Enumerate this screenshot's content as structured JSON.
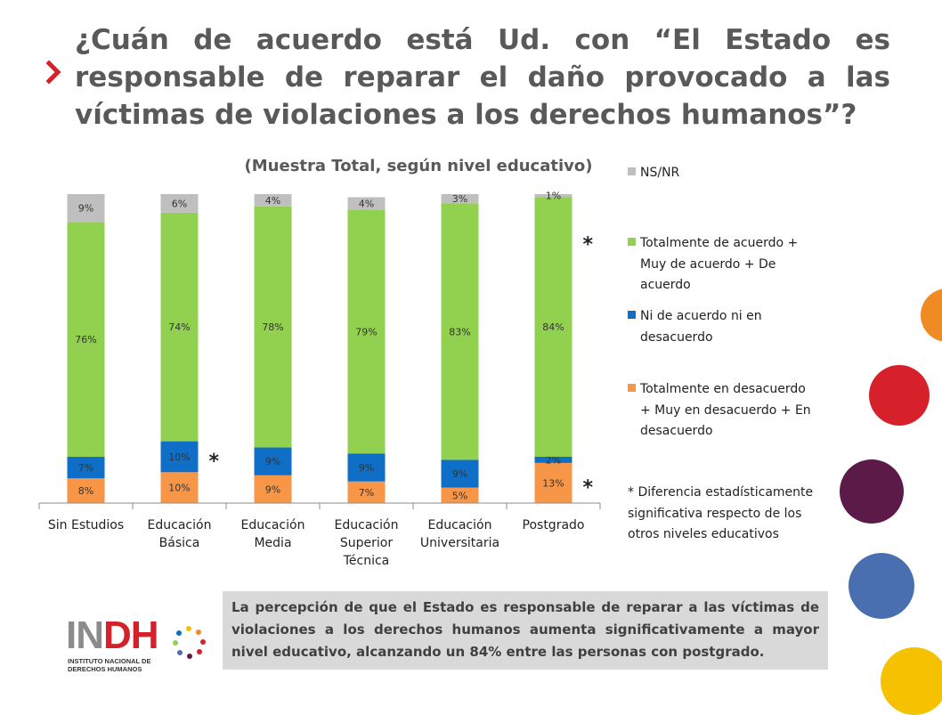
{
  "title": "¿Cuán de acuerdo está Ud. con “El Estado es responsable de reparar el daño provocado a las víctimas de violaciones a los derechos humanos”?",
  "subtitle": "(Muestra Total, según nivel educativo)",
  "chart_data": {
    "type": "bar",
    "stacked": true,
    "categories": [
      "Sin Estudios",
      "Educación Básica",
      "Educación Media",
      "Educación Superior Técnica",
      "Educación Universitaria",
      "Postgrado"
    ],
    "category_lines": [
      [
        "Sin Estudios"
      ],
      [
        "Educación",
        "Básica"
      ],
      [
        "Educación",
        "Media"
      ],
      [
        "Educación",
        "Superior",
        "Técnica"
      ],
      [
        "Educación",
        "Universitaria"
      ],
      [
        "Postgrado"
      ]
    ],
    "series": [
      {
        "name": "Totalmente en desacuerdo + Muy en desacuerdo + En desacuerdo",
        "color": "#f79646",
        "values": [
          8,
          10,
          9,
          7,
          5,
          13
        ],
        "labels": [
          "8%",
          "10%",
          "9%",
          "7%",
          "5%",
          "13%"
        ]
      },
      {
        "name": "Ni de acuerdo ni en desacuerdo",
        "color": "#0f6fc6",
        "values": [
          7,
          10,
          9,
          9,
          9,
          2
        ],
        "labels": [
          "7%",
          "10%",
          "9%",
          "9%",
          "9%",
          "2%"
        ]
      },
      {
        "name": "Totalmente de acuerdo + Muy de acuerdo + De acuerdo",
        "color": "#92d050",
        "values": [
          76,
          74,
          78,
          79,
          83,
          84
        ],
        "labels": [
          "76%",
          "74%",
          "78%",
          "79%",
          "83%",
          "84%"
        ]
      },
      {
        "name": "NS/NR",
        "color": "#bfbfbf",
        "values": [
          9,
          6,
          4,
          4,
          3,
          1
        ],
        "labels": [
          "9%",
          "6%",
          "4%",
          "4%",
          "3%",
          "1%"
        ]
      }
    ],
    "ylim": [
      0,
      100
    ],
    "grid": false,
    "legend_position": "right",
    "significance_markers": [
      {
        "category": "Educación Básica",
        "series": "Ni de acuerdo ni en desacuerdo",
        "symbol": "*"
      },
      {
        "category": "Postgrado",
        "series": "Totalmente de acuerdo + Muy de acuerdo + De acuerdo",
        "symbol": "*"
      },
      {
        "category": "Postgrado",
        "series": "Totalmente en desacuerdo + Muy en desacuerdo + En desacuerdo",
        "symbol": "*"
      }
    ]
  },
  "legend": [
    {
      "label": "NS/NR",
      "color": "#bfbfbf"
    },
    {
      "label": "Totalmente de acuerdo + Muy de acuerdo + De acuerdo",
      "color": "#92d050"
    },
    {
      "label": "Ni de acuerdo ni en desacuerdo",
      "color": "#0f6fc6"
    },
    {
      "label": "Totalmente en desacuerdo + Muy en desacuerdo + En desacuerdo",
      "color": "#f79646"
    }
  ],
  "footnote": "* Diferencia estadísticamente significativa respecto de los otros niveles educativos",
  "note": "La percepción de que el Estado es responsable de reparar a las víctimas de violaciones a los derechos humanos aumenta significativamente a mayor nivel educativo, alcanzando un 84% entre las personas con postgrado.",
  "logo": {
    "wordmark": "INDH",
    "subtitle": "INSTITUTO NACIONAL DE DERECHOS HUMANOS"
  },
  "colors": {
    "title": "#595959",
    "accent_red": "#d6202a",
    "note_bg": "#d9d9d9",
    "deco_orange": "#f08a24",
    "deco_red": "#d6202a",
    "deco_purple": "#5c1a48",
    "deco_blue": "#4a6fb0",
    "deco_yellow": "#f6c200"
  }
}
